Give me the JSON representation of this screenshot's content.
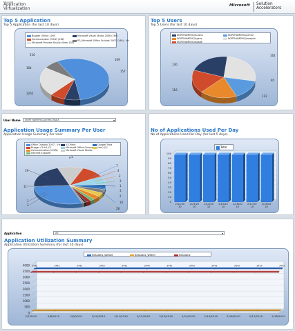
{
  "header": {
    "product_small": "Microsoft",
    "product_line1": "Application",
    "product_line2": "Virtualization",
    "ms_brand": "Microsoft",
    "solution_line1": "Solution",
    "solution_line2": "Accelerators"
  },
  "panel_top_apps": {
    "title": "Top 5 Application",
    "subtitle": "Top 5 Application (for last 10 days)",
    "legend": [
      "Bugger Online 1265",
      "Microsoft Visual Studio 2008 (280)",
      "Communicator (CHW) (282)",
      "Microsoft Preview Studio (View 128)",
      "R3_Microsoft Office Outlook 2007 (146) - Viz"
    ],
    "labels": [
      "516",
      "164",
      "169",
      "157",
      "1265"
    ]
  },
  "panel_top_users": {
    "title": "Top 5 Users",
    "subtitle": "Top 5 Users (for last 10 days)",
    "legend": [
      "NORTHAMERIC\\Aulens",
      "NORTHAMERIC\\pemar",
      "NORTHAMERIC\\Agera",
      "NORTHAMERIC\\astaphn",
      "NORTHAMERIC\\bgage"
    ],
    "labels": [
      "130",
      "162",
      "95",
      "116",
      "112"
    ]
  },
  "user_filter": {
    "label": "User Name",
    "value": "NORTHAMERICA\\ERKGTBAA"
  },
  "panel_usage_summary": {
    "title": "Application Usage Summary Per User",
    "subtitle": "Application Usage Summary Per User",
    "legend": [
      "Office Outlook 2007 - Vrt",
      "Bugger Cli.h4 (C)",
      "Communication (CHW)",
      "Internet Explorer",
      "V3_Paint",
      "Microsoft Office Groove",
      "Microsoft Visual Studio",
      "Google Tools",
      "(sna) (2)"
    ],
    "more": "▲ ▼",
    "labels": [
      "7",
      "4",
      "2",
      "3",
      "1",
      "3",
      "2",
      "10",
      "28",
      "19",
      "11",
      "1",
      "3"
    ]
  },
  "panel_apps_per_day": {
    "title": "No of Applications Used Per Day",
    "subtitle": "No of Applications Used Per Day (for last 5 days)",
    "legend_label": "Total",
    "ylabels": [
      "100",
      "90",
      "80",
      "70",
      "60",
      "50",
      "40",
      "30",
      "20",
      "10",
      "0"
    ],
    "xlabels": [
      "2/12/20 10",
      "2/13/20 10",
      "2/14/20 10",
      "2/15/20 10",
      "2/16/20 10",
      "2/17/20 10",
      "2/18/20 10"
    ]
  },
  "app_filter": {
    "label": "Application",
    "value": "All"
  },
  "panel_utilization": {
    "title": "Application Utilization Summary",
    "subtitle": "Application Utilization Summary (for last 10 days)",
    "legend": [
      "Sessions_before",
      "Sessions_within",
      "Sessions"
    ],
    "ylabels": [
      "4000",
      "3500",
      "3000",
      "2500",
      "2000",
      "1500",
      "1000",
      "500",
      "0"
    ],
    "xlabels": [
      "2/7/2010",
      "2/8/2010",
      "2/9/2010",
      "2/10/2010",
      "2/11/2010",
      "2/12/2010",
      "2/13/2010",
      "2/14/2010",
      "2/15/2010",
      "2/16/2010",
      "2/17/2010",
      "2/18/2010"
    ],
    "point_labels": [
      "3443",
      "3442",
      "3442",
      "3443",
      "3442",
      "3444",
      "3443",
      "3443",
      "3443",
      "3443",
      "3443",
      "3443"
    ]
  },
  "chart_data": [
    {
      "type": "pie",
      "title": "Top 5 Application",
      "categories": [
        "Bugger Online 1265",
        "Microsoft Visual Studio 2008 (280)",
        "Communicator (CHW) (282)",
        "Microsoft Preview Studio (View 128)",
        "R3_Microsoft Office Outlook 2007 (146) - Viz"
      ],
      "values": [
        1265,
        169,
        157,
        516,
        164
      ],
      "colors": [
        "#4f8fdb",
        "#2a3f66",
        "#cf4b2b",
        "#e2e2e2",
        "#7c7c7c"
      ]
    },
    {
      "type": "pie",
      "title": "Top 5 Users",
      "categories": [
        "NORTHAMERIC\\Aulens",
        "NORTHAMERIC\\pemar",
        "NORTHAMERIC\\Agera",
        "NORTHAMERIC\\astaphn",
        "NORTHAMERIC\\bgage"
      ],
      "values": [
        130,
        162,
        95,
        116,
        112
      ],
      "colors": [
        "#2a3f66",
        "#e2e2e2",
        "#5a9be0",
        "#e88a2c",
        "#cf4b2b"
      ]
    },
    {
      "type": "pie",
      "title": "Application Usage Summary Per User",
      "values": [
        28,
        19,
        11,
        10,
        7,
        4,
        3,
        3,
        3,
        2,
        2,
        1,
        1
      ],
      "colors": [
        "#4f8fdb",
        "#2a3f66",
        "#cccccc",
        "#cf4b2b",
        "#9fd6ea",
        "#2e6fb7",
        "#7c7c7c",
        "#e8c84a",
        "#e88a2c",
        "#6fb86f",
        "#a52a2a",
        "#333333",
        "#999999"
      ]
    },
    {
      "type": "bar",
      "title": "No of Applications Used Per Day",
      "categories": [
        "2/12/20 10",
        "2/13/20 10",
        "2/14/20 10",
        "2/15/20 10",
        "2/16/20 10",
        "2/17/20 10",
        "2/18/20 10"
      ],
      "series": [
        {
          "name": "Total",
          "values": [
            98,
            98,
            98,
            98,
            98,
            98,
            98
          ]
        }
      ],
      "ylim": [
        0,
        100
      ],
      "color": "#2f7ee0"
    },
    {
      "type": "line",
      "title": "Application Utilization Summary",
      "categories": [
        "2/7/2010",
        "2/8/2010",
        "2/9/2010",
        "2/10/2010",
        "2/11/2010",
        "2/12/2010",
        "2/13/2010",
        "2/14/2010",
        "2/15/2010",
        "2/16/2010",
        "2/17/2010",
        "2/18/2010"
      ],
      "series": [
        {
          "name": "Sessions_before",
          "values": [
            3443,
            3442,
            3442,
            3443,
            3442,
            3444,
            3443,
            3443,
            3443,
            3443,
            3443,
            3443
          ],
          "color": "#2f6fc7"
        },
        {
          "name": "Sessions_within",
          "values": [
            60,
            60,
            60,
            60,
            60,
            60,
            60,
            60,
            60,
            60,
            60,
            60
          ],
          "color": "#e2a23a"
        },
        {
          "name": "Sessions",
          "values": [
            3440,
            3440,
            3440,
            3440,
            3440,
            3440,
            3440,
            3440,
            3440,
            3440,
            3440,
            3440
          ],
          "color": "#b22b2b"
        }
      ],
      "ylim": [
        0,
        4000
      ]
    }
  ]
}
